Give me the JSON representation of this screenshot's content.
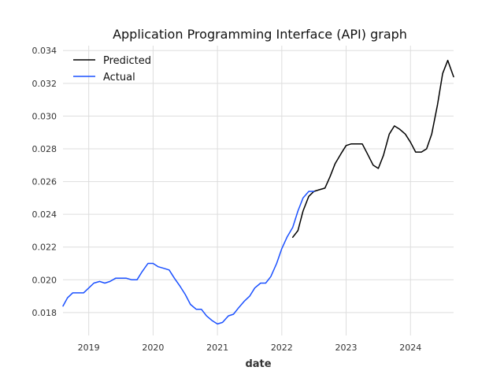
{
  "chart_data": {
    "type": "line",
    "title": "Application Programming Interface (API) graph",
    "xlabel": "date",
    "ylabel": "",
    "xlim": [
      2018.6,
      2024.67
    ],
    "ylim": [
      0.0166,
      0.0343
    ],
    "x_ticks": [
      {
        "value": 2019,
        "label": "2019"
      },
      {
        "value": 2020,
        "label": "2020"
      },
      {
        "value": 2021,
        "label": "2021"
      },
      {
        "value": 2022,
        "label": "2022"
      },
      {
        "value": 2023,
        "label": "2023"
      },
      {
        "value": 2024,
        "label": "2024"
      }
    ],
    "y_ticks": [
      {
        "value": 0.018,
        "label": "0.018"
      },
      {
        "value": 0.02,
        "label": "0.020"
      },
      {
        "value": 0.022,
        "label": "0.022"
      },
      {
        "value": 0.024,
        "label": "0.024"
      },
      {
        "value": 0.026,
        "label": "0.026"
      },
      {
        "value": 0.028,
        "label": "0.028"
      },
      {
        "value": 0.03,
        "label": "0.030"
      },
      {
        "value": 0.032,
        "label": "0.032"
      },
      {
        "value": 0.034,
        "label": "0.034"
      }
    ],
    "grid": true,
    "legend_position": "top-left",
    "series": [
      {
        "name": "Predicted",
        "color": "#000000",
        "x": [
          2022.17,
          2022.25,
          2022.33,
          2022.42,
          2022.5,
          2022.58,
          2022.67,
          2022.75,
          2022.83,
          2022.92,
          2023.0,
          2023.08,
          2023.17,
          2023.25,
          2023.33,
          2023.42,
          2023.5,
          2023.58,
          2023.67,
          2023.75,
          2023.83,
          2023.92,
          2024.0,
          2024.08,
          2024.17,
          2024.25,
          2024.33,
          2024.42,
          2024.5,
          2024.58,
          2024.67
        ],
        "y": [
          0.0226,
          0.023,
          0.0242,
          0.0251,
          0.0254,
          0.0255,
          0.0256,
          0.0263,
          0.0271,
          0.0277,
          0.0282,
          0.0283,
          0.0283,
          0.0283,
          0.0277,
          0.027,
          0.0268,
          0.0276,
          0.0289,
          0.0294,
          0.0292,
          0.0289,
          0.0284,
          0.0278,
          0.0278,
          0.028,
          0.0289,
          0.0307,
          0.0326,
          0.0334,
          0.0324
        ]
      },
      {
        "name": "Actual",
        "color": "#1a50ff",
        "x": [
          2018.6,
          2018.67,
          2018.75,
          2018.83,
          2018.92,
          2019.0,
          2019.08,
          2019.17,
          2019.25,
          2019.33,
          2019.42,
          2019.5,
          2019.58,
          2019.67,
          2019.75,
          2019.83,
          2019.92,
          2020.0,
          2020.08,
          2020.17,
          2020.25,
          2020.33,
          2020.42,
          2020.5,
          2020.58,
          2020.67,
          2020.75,
          2020.83,
          2020.92,
          2021.0,
          2021.08,
          2021.17,
          2021.25,
          2021.33,
          2021.42,
          2021.5,
          2021.58,
          2021.67,
          2021.75,
          2021.83,
          2021.92,
          2022.0,
          2022.08,
          2022.17,
          2022.25,
          2022.33,
          2022.42,
          2022.5
        ],
        "y": [
          0.0184,
          0.0189,
          0.0192,
          0.0192,
          0.0192,
          0.0195,
          0.0198,
          0.0199,
          0.0198,
          0.0199,
          0.0201,
          0.0201,
          0.0201,
          0.02,
          0.02,
          0.0205,
          0.021,
          0.021,
          0.0208,
          0.0207,
          0.0206,
          0.0201,
          0.0196,
          0.0191,
          0.0185,
          0.0182,
          0.0182,
          0.0178,
          0.0175,
          0.0173,
          0.0174,
          0.0178,
          0.0179,
          0.0183,
          0.0187,
          0.019,
          0.0195,
          0.0198,
          0.0198,
          0.0202,
          0.021,
          0.0219,
          0.0226,
          0.0232,
          0.0242,
          0.025,
          0.0254,
          0.0254
        ]
      }
    ]
  }
}
